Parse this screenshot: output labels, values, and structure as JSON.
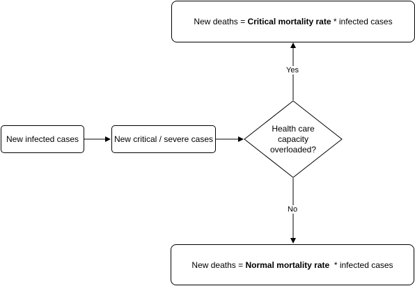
{
  "nodes": {
    "new_infected": "New infected cases",
    "new_critical": "New critical / severe cases",
    "decision": [
      "Health care",
      "capacity",
      "overloaded?"
    ],
    "critical_deaths": {
      "prefix": "New deaths = ",
      "bold": "Critical mortality rate",
      "suffix": " * infected cases"
    },
    "normal_deaths": {
      "prefix": "New deaths = ",
      "bold": "Normal mortality rate",
      "suffix": "  * infected cases"
    }
  },
  "edges": {
    "yes_label": "Yes",
    "no_label": "No"
  }
}
